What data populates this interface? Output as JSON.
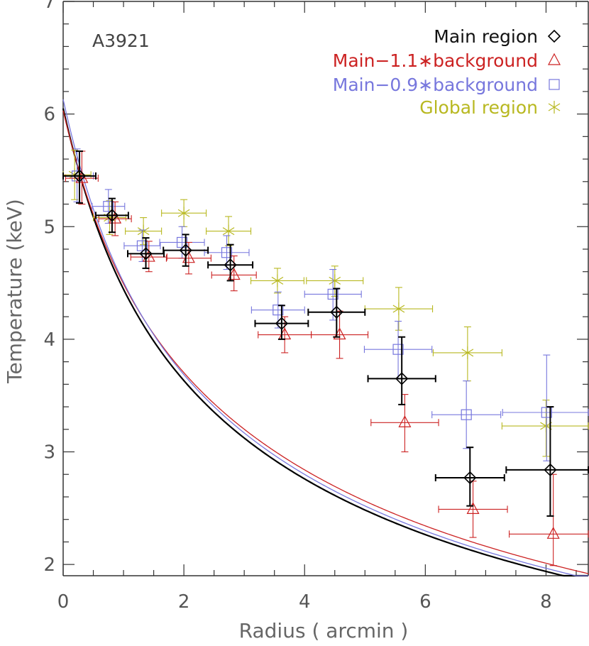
{
  "chart_data": {
    "type": "scatter",
    "title": "",
    "annotation": "A3921",
    "xlabel": "Radius ( arcmin )",
    "ylabel": "Temperature (keV)",
    "xlim": [
      0,
      8.7
    ],
    "ylim": [
      1.9,
      7
    ],
    "xticks": [
      0,
      2,
      4,
      6,
      8
    ],
    "yticks": [
      2,
      3,
      4,
      5,
      6,
      7
    ],
    "grid": false,
    "legend_position": "top-right",
    "series": [
      {
        "name": "Main region",
        "color": "#000000",
        "marker": "diamond",
        "points": [
          {
            "x": 0.27,
            "xerr": 0.27,
            "y": 5.45,
            "ylo": 5.21,
            "yhi": 5.67
          },
          {
            "x": 0.81,
            "xerr": 0.27,
            "y": 5.1,
            "ylo": 4.95,
            "yhi": 5.25
          },
          {
            "x": 1.37,
            "xerr": 0.3,
            "y": 4.76,
            "ylo": 4.63,
            "yhi": 4.9
          },
          {
            "x": 2.03,
            "xerr": 0.37,
            "y": 4.79,
            "ylo": 4.65,
            "yhi": 4.93
          },
          {
            "x": 2.77,
            "xerr": 0.37,
            "y": 4.66,
            "ylo": 4.52,
            "yhi": 4.84
          },
          {
            "x": 3.62,
            "xerr": 0.44,
            "y": 4.14,
            "ylo": 4.0,
            "yhi": 4.3
          },
          {
            "x": 4.53,
            "xerr": 0.47,
            "y": 4.24,
            "ylo": 4.02,
            "yhi": 4.45
          },
          {
            "x": 5.61,
            "xerr": 0.56,
            "y": 3.65,
            "ylo": 3.42,
            "yhi": 4.02
          },
          {
            "x": 6.74,
            "xerr": 0.57,
            "y": 2.77,
            "ylo": 2.52,
            "yhi": 3.04
          },
          {
            "x": 8.07,
            "xerr": 0.73,
            "y": 2.84,
            "ylo": 2.43,
            "yhi": 3.4
          }
        ]
      },
      {
        "name": "Main−1.1∗background",
        "color": "#cc2222",
        "marker": "triangle",
        "points": [
          {
            "x": 0.31,
            "xerr": 0.27,
            "y": 5.43,
            "ylo": 5.2,
            "yhi": 5.67
          },
          {
            "x": 0.86,
            "xerr": 0.27,
            "y": 5.07,
            "ylo": 4.92,
            "yhi": 5.22
          },
          {
            "x": 1.42,
            "xerr": 0.3,
            "y": 4.73,
            "ylo": 4.6,
            "yhi": 4.87
          },
          {
            "x": 2.08,
            "xerr": 0.37,
            "y": 4.72,
            "ylo": 4.58,
            "yhi": 4.86
          },
          {
            "x": 2.83,
            "xerr": 0.37,
            "y": 4.57,
            "ylo": 4.43,
            "yhi": 4.74
          },
          {
            "x": 3.67,
            "xerr": 0.44,
            "y": 4.04,
            "ylo": 3.88,
            "yhi": 4.2
          },
          {
            "x": 4.58,
            "xerr": 0.47,
            "y": 4.04,
            "ylo": 3.83,
            "yhi": 4.25
          },
          {
            "x": 5.66,
            "xerr": 0.56,
            "y": 3.26,
            "ylo": 3.0,
            "yhi": 3.51
          },
          {
            "x": 6.79,
            "xerr": 0.57,
            "y": 2.49,
            "ylo": 2.24,
            "yhi": 2.74
          },
          {
            "x": 8.12,
            "xerr": 0.73,
            "y": 2.27,
            "ylo": 1.99,
            "yhi": 2.8
          }
        ]
      },
      {
        "name": "Main−0.9∗background",
        "color": "#7777dd",
        "marker": "square",
        "points": [
          {
            "x": 0.23,
            "xerr": 0.27,
            "y": 5.45,
            "ylo": 5.22,
            "yhi": 5.69
          },
          {
            "x": 0.75,
            "xerr": 0.27,
            "y": 5.18,
            "ylo": 5.03,
            "yhi": 5.33
          },
          {
            "x": 1.31,
            "xerr": 0.3,
            "y": 4.83,
            "ylo": 4.69,
            "yhi": 4.97
          },
          {
            "x": 1.97,
            "xerr": 0.37,
            "y": 4.86,
            "ylo": 4.72,
            "yhi": 5.0
          },
          {
            "x": 2.71,
            "xerr": 0.37,
            "y": 4.77,
            "ylo": 4.62,
            "yhi": 4.92
          },
          {
            "x": 3.56,
            "xerr": 0.44,
            "y": 4.26,
            "ylo": 4.1,
            "yhi": 4.42
          },
          {
            "x": 4.47,
            "xerr": 0.47,
            "y": 4.4,
            "ylo": 4.17,
            "yhi": 4.62
          },
          {
            "x": 5.55,
            "xerr": 0.56,
            "y": 3.91,
            "ylo": 3.65,
            "yhi": 4.16
          },
          {
            "x": 6.68,
            "xerr": 0.57,
            "y": 3.33,
            "ylo": 3.03,
            "yhi": 3.63
          },
          {
            "x": 8.01,
            "xerr": 0.73,
            "y": 3.35,
            "ylo": 2.92,
            "yhi": 3.86
          }
        ]
      },
      {
        "name": "Global region",
        "color": "#b8b820",
        "marker": "asterisk",
        "points": [
          {
            "x": 0.19,
            "xerr": 0.27,
            "y": 5.46,
            "ylo": 5.24,
            "yhi": 5.68
          },
          {
            "x": 0.77,
            "xerr": 0.27,
            "y": 5.08,
            "ylo": 4.93,
            "yhi": 5.23
          },
          {
            "x": 1.33,
            "xerr": 0.3,
            "y": 4.96,
            "ylo": 4.84,
            "yhi": 5.08
          },
          {
            "x": 2.0,
            "xerr": 0.37,
            "y": 5.12,
            "ylo": 5.0,
            "yhi": 5.24
          },
          {
            "x": 2.74,
            "xerr": 0.37,
            "y": 4.96,
            "ylo": 4.83,
            "yhi": 5.09
          },
          {
            "x": 3.55,
            "xerr": 0.44,
            "y": 4.52,
            "ylo": 4.41,
            "yhi": 4.63
          },
          {
            "x": 4.5,
            "xerr": 0.47,
            "y": 4.52,
            "ylo": 4.38,
            "yhi": 4.65
          },
          {
            "x": 5.56,
            "xerr": 0.56,
            "y": 4.27,
            "ylo": 4.08,
            "yhi": 4.46
          },
          {
            "x": 6.7,
            "xerr": 0.57,
            "y": 3.88,
            "ylo": 3.63,
            "yhi": 4.11
          },
          {
            "x": 8.0,
            "xerr": 0.73,
            "y": 3.23,
            "ylo": 2.96,
            "yhi": 3.46
          }
        ]
      }
    ],
    "fit_curves": [
      {
        "series": "Main region",
        "color": "#000000",
        "T0": 6.05,
        "a": 0.65,
        "b": 2.65
      },
      {
        "series": "Main−1.1∗background",
        "color": "#cc2222",
        "T0": 6.03,
        "a": 0.65,
        "b": 2.85
      },
      {
        "series": "Main−0.9∗background",
        "color": "#7777dd",
        "T0": 6.13,
        "a": 0.65,
        "b": 2.65
      }
    ]
  }
}
